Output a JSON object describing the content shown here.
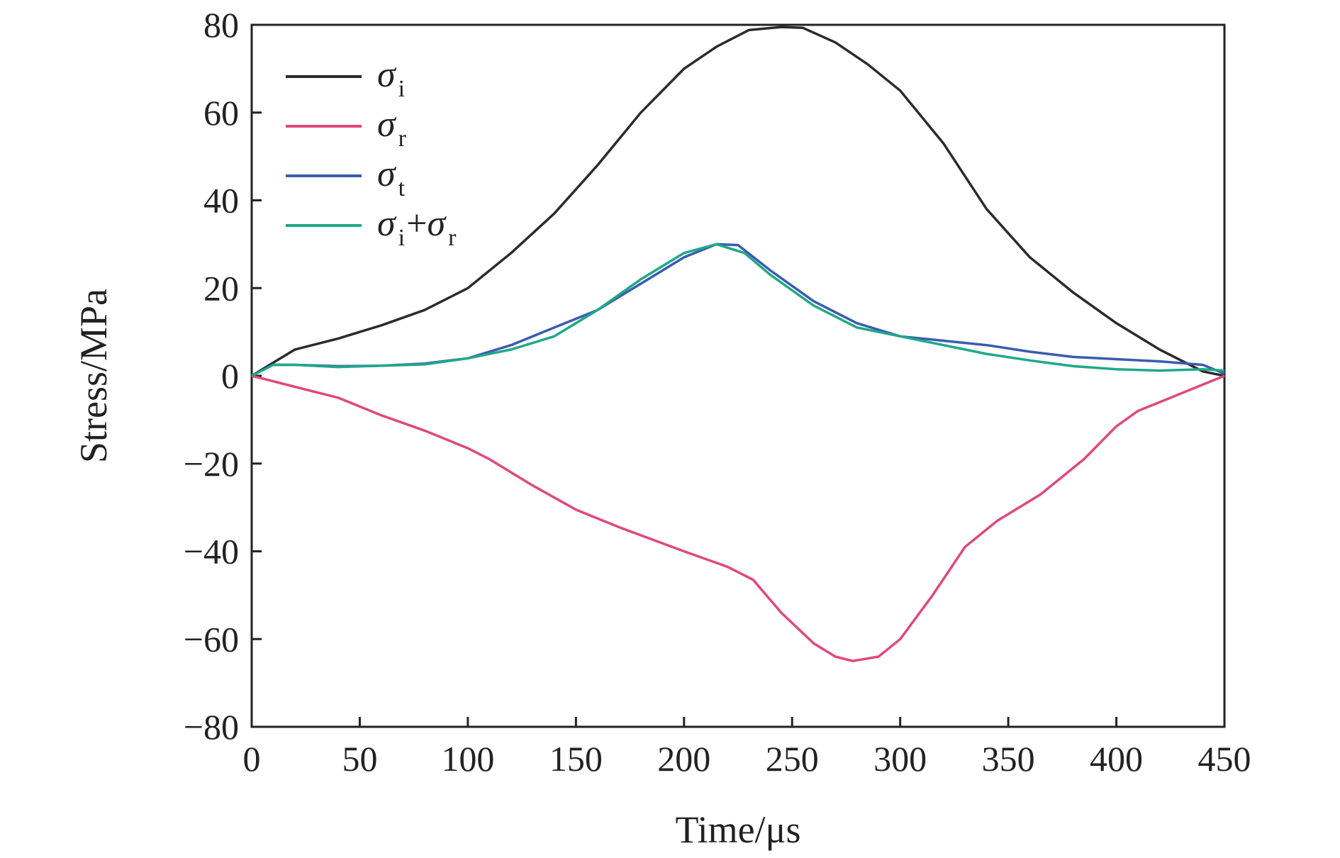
{
  "chart_data": {
    "type": "line",
    "xlabel": "Time/μs",
    "ylabel": "Stress/MPa",
    "xlim": [
      0,
      450
    ],
    "ylim": [
      -80,
      80
    ],
    "xticks": [
      "0",
      "50",
      "100",
      "150",
      "200",
      "250",
      "300",
      "350",
      "400",
      "450"
    ],
    "yticks": [
      "80",
      "60",
      "40",
      "20",
      "0",
      "−20",
      "−40",
      "−60",
      "−80"
    ],
    "grid": false,
    "legend_position": "top-left",
    "series": [
      {
        "name": "σi",
        "symbol": "σ",
        "sub": "i",
        "color": "#2b2b2b",
        "x": [
          0,
          10,
          20,
          40,
          60,
          80,
          100,
          120,
          140,
          160,
          180,
          200,
          215,
          230,
          245,
          255,
          270,
          285,
          300,
          320,
          340,
          360,
          380,
          400,
          420,
          440,
          450
        ],
        "y": [
          0,
          3,
          6,
          8.5,
          11.5,
          15,
          20,
          28,
          37,
          48,
          60,
          70,
          75,
          78.8,
          79.5,
          79.3,
          76,
          71,
          65,
          53,
          38,
          27,
          19,
          12,
          6,
          1,
          0
        ]
      },
      {
        "name": "σr",
        "symbol": "σ",
        "sub": "r",
        "color": "#e0497a",
        "x": [
          0,
          20,
          40,
          60,
          80,
          100,
          110,
          130,
          150,
          170,
          200,
          220,
          232,
          245,
          260,
          270,
          278,
          290,
          300,
          315,
          330,
          345,
          365,
          385,
          400,
          410,
          430,
          450
        ],
        "y": [
          0,
          -2.5,
          -5,
          -9,
          -12.5,
          -16.5,
          -19,
          -25,
          -30.5,
          -34.5,
          -40,
          -43.5,
          -46.5,
          -54,
          -61,
          -64,
          -65,
          -64,
          -60,
          -50,
          -39,
          -33,
          -27,
          -19,
          -11.5,
          -8,
          -4,
          0
        ]
      },
      {
        "name": "σt",
        "symbol": "σ",
        "sub": "t",
        "color": "#3a5cb0",
        "x": [
          0,
          10,
          20,
          40,
          60,
          80,
          100,
          120,
          140,
          160,
          180,
          200,
          215,
          225,
          240,
          260,
          280,
          300,
          320,
          340,
          360,
          380,
          400,
          420,
          440,
          450
        ],
        "y": [
          0,
          2.5,
          2.5,
          2.2,
          2.3,
          2.8,
          4,
          7,
          11,
          15,
          21,
          27,
          30,
          29.8,
          24,
          17,
          12,
          9,
          8,
          7,
          5.5,
          4.3,
          3.8,
          3.3,
          2.5,
          0.5
        ]
      },
      {
        "name": "σi+σr",
        "symbol": "σ",
        "sub": "i",
        "plus_symbol": "σ",
        "plus_sub": "r",
        "color": "#1fa88a",
        "x": [
          0,
          10,
          20,
          40,
          60,
          80,
          100,
          120,
          140,
          160,
          180,
          200,
          215,
          228,
          240,
          260,
          280,
          300,
          320,
          340,
          360,
          380,
          400,
          420,
          440,
          450
        ],
        "y": [
          0,
          2.5,
          2.5,
          2,
          2.3,
          2.6,
          4,
          6,
          9,
          15,
          22,
          28,
          30,
          28,
          23,
          16,
          11,
          9,
          7,
          5,
          3.5,
          2.2,
          1.5,
          1.2,
          1.5,
          1.2
        ]
      }
    ]
  }
}
